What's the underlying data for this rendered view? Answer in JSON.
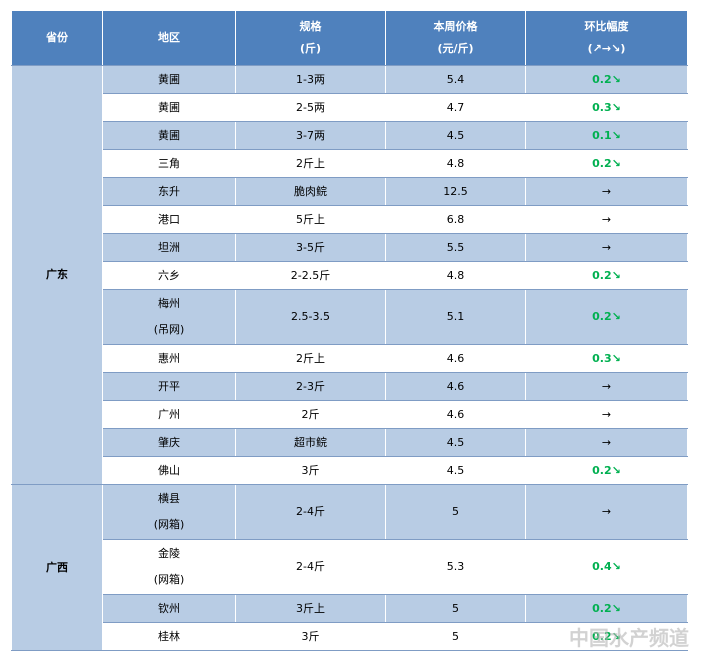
{
  "header": [
    [
      "省份"
    ],
    [
      "地区"
    ],
    [
      "规格",
      "(斤)"
    ],
    [
      "本周价格",
      "(元/斤)"
    ],
    [
      "环比幅度",
      "(↗→↘)"
    ]
  ],
  "groups": [
    {
      "province": "广东",
      "rows": [
        {
          "region": [
            "黄圃"
          ],
          "spec": "1-3两",
          "price": "5.4",
          "change": "0.2↘"
        },
        {
          "region": [
            "黄圃"
          ],
          "spec": "2-5两",
          "price": "4.7",
          "change": "0.3↘"
        },
        {
          "region": [
            "黄圃"
          ],
          "spec": "3-7两",
          "price": "4.5",
          "change": "0.1↘"
        },
        {
          "region": [
            "三角"
          ],
          "spec": "2斤上",
          "price": "4.8",
          "change": "0.2↘"
        },
        {
          "region": [
            "东升"
          ],
          "spec": "脆肉鲩",
          "price": "12.5",
          "change": "→"
        },
        {
          "region": [
            "港口"
          ],
          "spec": "5斤上",
          "price": "6.8",
          "change": "→"
        },
        {
          "region": [
            "坦洲"
          ],
          "spec": "3-5斤",
          "price": "5.5",
          "change": "→"
        },
        {
          "region": [
            "六乡"
          ],
          "spec": "2-2.5斤",
          "price": "4.8",
          "change": "0.2↘"
        },
        {
          "region": [
            "梅州",
            "(吊网)"
          ],
          "spec": "2.5-3.5",
          "price": "5.1",
          "change": "0.2↘"
        },
        {
          "region": [
            "惠州"
          ],
          "spec": "2斤上",
          "price": "4.6",
          "change": "0.3↘"
        },
        {
          "region": [
            "开平"
          ],
          "spec": "2-3斤",
          "price": "4.6",
          "change": "→"
        },
        {
          "region": [
            "广州"
          ],
          "spec": "2斤",
          "price": "4.6",
          "change": "→"
        },
        {
          "region": [
            "肇庆"
          ],
          "spec": "超市鲩",
          "price": "4.5",
          "change": "→"
        },
        {
          "region": [
            "佛山"
          ],
          "spec": "3斤",
          "price": "4.5",
          "change": "0.2↘"
        }
      ]
    },
    {
      "province": "广西",
      "rows": [
        {
          "region": [
            "横县",
            "(网箱)"
          ],
          "spec": "2-4斤",
          "price": "5",
          "change": "→"
        },
        {
          "region": [
            "金陵",
            "(网箱)"
          ],
          "spec": "2-4斤",
          "price": "5.3",
          "change": "0.4↘"
        },
        {
          "region": [
            "钦州"
          ],
          "spec": "3斤上",
          "price": "5",
          "change": "0.2↘"
        },
        {
          "region": [
            "桂林"
          ],
          "spec": "3斤",
          "price": "5",
          "change": "0.2↘"
        }
      ]
    }
  ],
  "watermark": "中国水产频道"
}
